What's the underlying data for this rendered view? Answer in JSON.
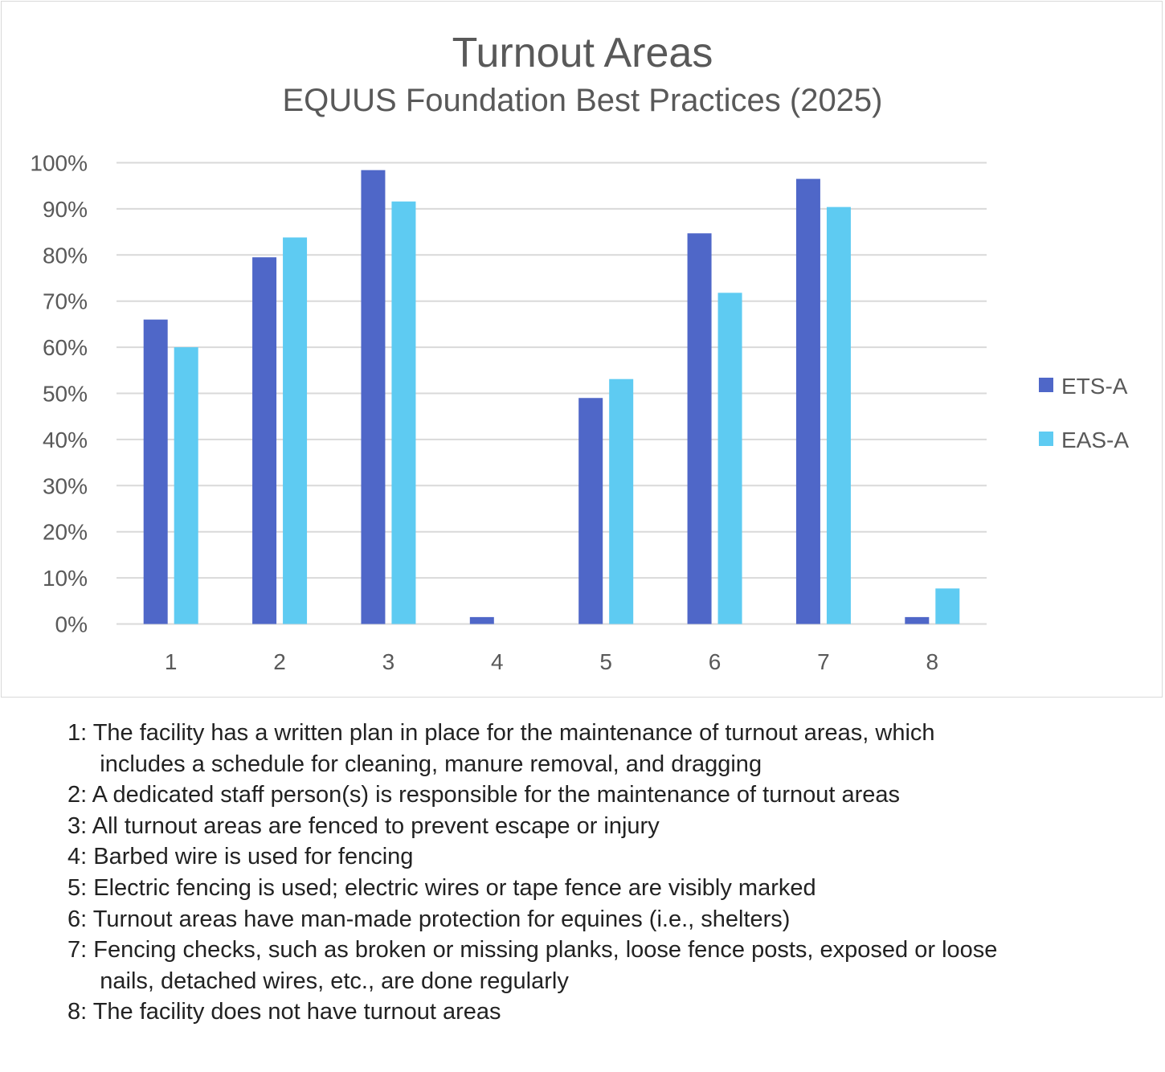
{
  "chart_data": {
    "type": "bar",
    "title": "Turnout Areas",
    "subtitle": "EQUUS Foundation Best Practices (2025)",
    "categories": [
      "1",
      "2",
      "3",
      "4",
      "5",
      "6",
      "7",
      "8"
    ],
    "series": [
      {
        "name": "ETS-A",
        "color": "#4f67c8",
        "values": [
          66,
          79.5,
          98.4,
          1.5,
          49,
          84.7,
          96.5,
          1.5
        ]
      },
      {
        "name": "EAS-A",
        "color": "#5ecbf2",
        "values": [
          60,
          83.8,
          91.6,
          0,
          53.1,
          71.8,
          90.4,
          7.7
        ]
      }
    ],
    "ylim": [
      0,
      100
    ],
    "yticks": [
      "0%",
      "10%",
      "20%",
      "30%",
      "40%",
      "50%",
      "60%",
      "70%",
      "80%",
      "90%",
      "100%"
    ],
    "grid": true,
    "legend": "right"
  },
  "notes": [
    "1: The facility has a written plan in place for the maintenance of turnout areas, which\n     includes a schedule for cleaning, manure removal, and dragging",
    "2: A dedicated staff person(s) is responsible for the maintenance of turnout areas",
    "3: All turnout areas are fenced to prevent escape or injury",
    "4: Barbed wire is used for fencing",
    "5: Electric fencing is used; electric wires or tape fence are visibly marked",
    "6: Turnout areas have man-made protection for equines (i.e., shelters)",
    "7: Fencing checks, such as broken or missing planks, loose fence posts, exposed or loose\n     nails, detached wires, etc., are done regularly",
    "8: The facility does not have turnout areas"
  ]
}
